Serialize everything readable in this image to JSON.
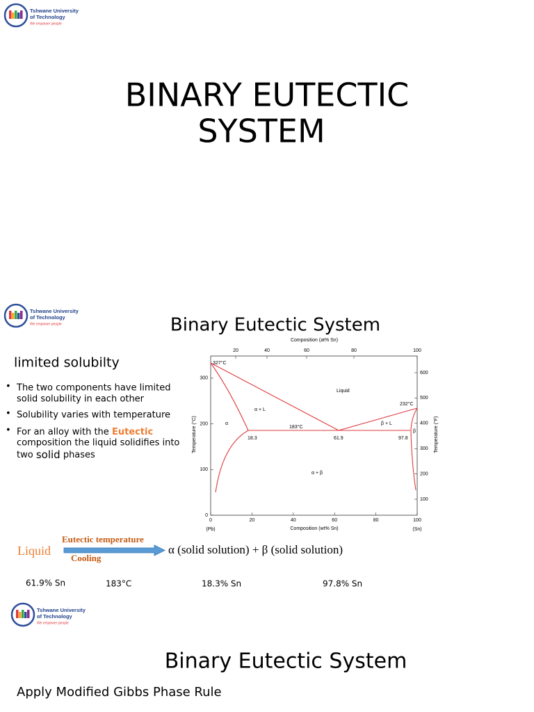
{
  "logo": {
    "line1": "Tshwane University",
    "line2": "of Technology",
    "tagline": "We empower people"
  },
  "slide1": {
    "title_line1": "BINARY EUTECTIC",
    "title_line2": "SYSTEM"
  },
  "slide2": {
    "title": "Binary Eutectic System",
    "subtitle": "limited solubilty",
    "bullets": [
      [
        "The two components have limited",
        "solid solubility in each other"
      ],
      [
        "Solubility varies with temperature"
      ],
      [
        "For an alloy with the ",
        "Eutectic",
        "composition the liquid solidifies into",
        "two ",
        "solid",
        " phases"
      ]
    ],
    "diagram": {
      "top_axis_label": "Composition (at% Sn)",
      "bottom_axis_label": "Composition (wt% Sn)",
      "left_axis_label": "Temperature (°C)",
      "right_axis_label": "Temperature (°F)",
      "top_ticks": [
        "20",
        "40",
        "60",
        "80",
        "100"
      ],
      "bottom_ticks": [
        "0",
        "20",
        "40",
        "60",
        "80",
        "100"
      ],
      "left_ticks": [
        "0",
        "100",
        "200",
        "300"
      ],
      "right_ticks": [
        "600",
        "500",
        "400",
        "300",
        "200",
        "100"
      ],
      "left_end": "(Pb)",
      "right_end": "(Sn)",
      "labels": [
        "327°C",
        "Liquid",
        "α + L",
        "α",
        "183°C",
        "β + L",
        "232°C",
        "β",
        "18.3",
        "61.9",
        "97.8",
        "α + β"
      ]
    },
    "reaction": {
      "reactant": "Liquid",
      "above_arrow": "Eutectic temperature",
      "below_arrow": "Cooling",
      "products": "α  (solid solution)  +  β  (solid solution)"
    },
    "values": [
      "61.9% Sn",
      "183°C",
      "18.3% Sn",
      "97.8% Sn"
    ]
  },
  "slide3": {
    "title": "Binary Eutectic System",
    "text": "Apply Modified Gibbs Phase Rule"
  }
}
